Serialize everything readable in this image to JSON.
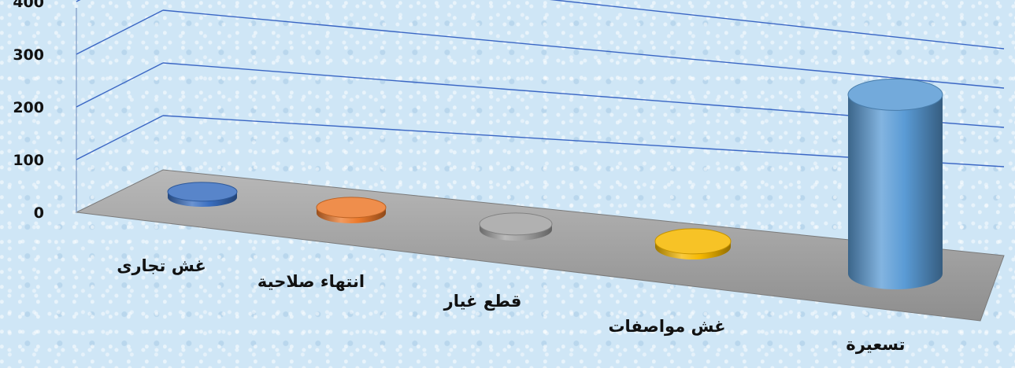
{
  "chart_data": {
    "type": "bar",
    "style": "3d-cylinder",
    "categories": [
      "غش تجارى",
      "انتهاء صلاحية",
      "قطع غيار",
      "غش مواصفات",
      "تسعيرة"
    ],
    "values": [
      5,
      5,
      5,
      5,
      355
    ],
    "colors": [
      "#3a6fc1",
      "#ec7a2c",
      "#a3a3a3",
      "#f5b800",
      "#5a9bd5"
    ],
    "yticks": [
      "0",
      "100",
      "200",
      "300",
      "400"
    ],
    "ylim": [
      0,
      400
    ],
    "grid": true,
    "legend": false,
    "floor_color": "#a6a6a6",
    "gridline_color": "#4a74c9"
  }
}
